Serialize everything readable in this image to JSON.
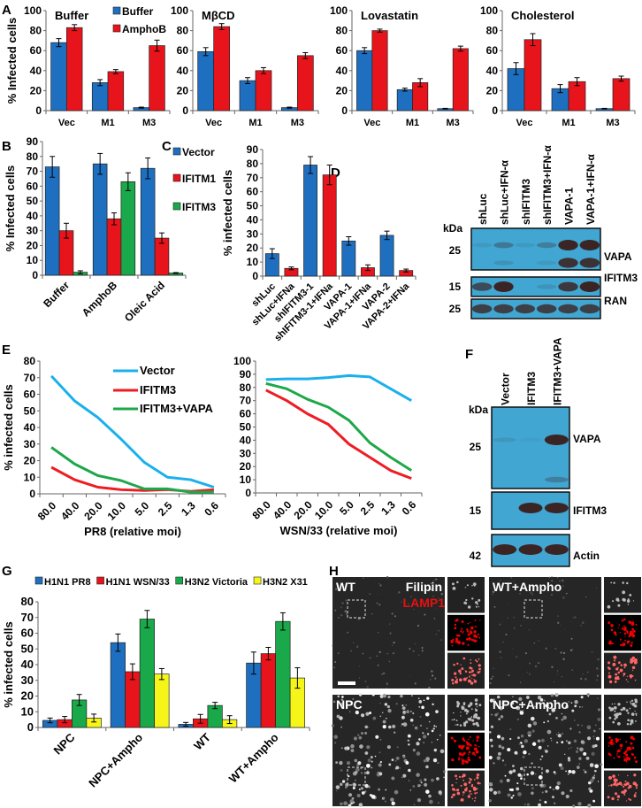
{
  "panel_labels": {
    "A": "A",
    "B": "B",
    "C": "C",
    "D": "D",
    "E": "E",
    "F": "F",
    "G": "G",
    "H": "H"
  },
  "chart_data": [
    {
      "id": "A1",
      "panel": "A",
      "type": "bar",
      "title": "Buffer",
      "xlabel": "",
      "ylabel": "% Infected cells",
      "ylim": [
        0,
        100
      ],
      "ystep": 20,
      "legend": "top-right",
      "categories": [
        "Vec",
        "M1",
        "M3"
      ],
      "series": [
        {
          "name": "Buffer",
          "color": "#1f6fc0",
          "values": [
            68,
            28,
            3
          ],
          "errors": [
            4,
            3,
            0.5
          ]
        },
        {
          "name": "AmphoB",
          "color": "#e8141c",
          "values": [
            83,
            39,
            65
          ],
          "errors": [
            3,
            2,
            5.5
          ]
        }
      ]
    },
    {
      "id": "A2",
      "panel": "A",
      "type": "bar",
      "title": "MβCD",
      "xlabel": "",
      "ylabel": "",
      "ylim": [
        0,
        100
      ],
      "ystep": 20,
      "categories": [
        "Vec",
        "M1",
        "M3"
      ],
      "series": [
        {
          "name": "Buffer",
          "color": "#1f6fc0",
          "values": [
            59,
            30,
            3
          ],
          "errors": [
            4,
            3,
            0.5
          ]
        },
        {
          "name": "AmphoB",
          "color": "#e8141c",
          "values": [
            84,
            40,
            55
          ],
          "errors": [
            3,
            3,
            3
          ]
        }
      ]
    },
    {
      "id": "A3",
      "panel": "A",
      "type": "bar",
      "title": "Lovastatin",
      "xlabel": "",
      "ylabel": "",
      "ylim": [
        0,
        100
      ],
      "ystep": 20,
      "categories": [
        "Vec",
        "M1",
        "M3"
      ],
      "series": [
        {
          "name": "Buffer",
          "color": "#1f6fc0",
          "values": [
            60,
            21,
            2
          ],
          "errors": [
            3,
            1.5,
            0.3
          ]
        },
        {
          "name": "AmphoB",
          "color": "#e8141c",
          "values": [
            80,
            28,
            62
          ],
          "errors": [
            1.5,
            4,
            2.5
          ]
        }
      ]
    },
    {
      "id": "A4",
      "panel": "A",
      "type": "bar",
      "title": "Cholesterol",
      "xlabel": "",
      "ylabel": "",
      "ylim": [
        0,
        100
      ],
      "ystep": 20,
      "categories": [
        "Vec",
        "M1",
        "M3"
      ],
      "series": [
        {
          "name": "Buffer",
          "color": "#1f6fc0",
          "values": [
            42,
            22,
            2
          ],
          "errors": [
            6,
            4,
            0.3
          ]
        },
        {
          "name": "AmphoB",
          "color": "#e8141c",
          "values": [
            71,
            29,
            32
          ],
          "errors": [
            6,
            4,
            2.5
          ]
        }
      ]
    },
    {
      "id": "B",
      "panel": "B",
      "type": "bar",
      "title": "",
      "xlabel": "",
      "ylabel": "% Infected cells",
      "ylim": [
        0,
        90
      ],
      "ystep": 10,
      "legend": "right",
      "categories": [
        "Buffer",
        "AmphoB",
        "Oleic Acid"
      ],
      "series": [
        {
          "name": "Vector",
          "color": "#1f6fc0",
          "values": [
            73,
            75,
            72
          ],
          "errors": [
            7,
            7,
            7
          ]
        },
        {
          "name": "IFITM1",
          "color": "#e8141c",
          "values": [
            30,
            38,
            25
          ],
          "errors": [
            5,
            4,
            3.5
          ]
        },
        {
          "name": "IFITM3",
          "color": "#19a84a",
          "values": [
            2,
            63,
            1.5
          ],
          "errors": [
            1,
            6,
            0.3
          ]
        }
      ]
    },
    {
      "id": "C",
      "panel": "C",
      "type": "bar",
      "title": "",
      "xlabel": "",
      "ylabel": "% infected cells",
      "ylim": [
        0,
        90
      ],
      "ystep": 10,
      "categories": [
        "shLuc",
        "shLuc+IFNa",
        "shIFITM3-1",
        "shIFITM3-1+IFNa",
        "VAPA-1",
        "VAPA-1+IFNa",
        "VAPA-2",
        "VAPA-2+IFNa"
      ],
      "values": [
        16,
        5.5,
        79,
        72,
        25,
        6,
        29,
        4
      ],
      "errors": [
        3.5,
        1,
        6,
        7,
        3,
        2,
        3,
        1
      ],
      "colors": [
        "#1f6fc0",
        "#e8141c",
        "#1f6fc0",
        "#e8141c",
        "#1f6fc0",
        "#e8141c",
        "#1f6fc0",
        "#e8141c"
      ]
    },
    {
      "id": "E1",
      "panel": "E",
      "type": "line",
      "title": "",
      "xlabel": "PR8 (relative moi)",
      "ylabel": "% infected cells",
      "ylim": [
        0,
        80
      ],
      "ystep": 10,
      "legend": "top-right",
      "x": [
        "80.0",
        "40.0",
        "20.0",
        "10.0",
        "5.0",
        "2.5",
        "1.3",
        "0.6"
      ],
      "series": [
        {
          "name": "Vector",
          "color": "#1ab0ec",
          "values": [
            71,
            56,
            46,
            33,
            19,
            10,
            8.5,
            4
          ]
        },
        {
          "name": "IFITM3",
          "color": "#ee1c24",
          "values": [
            16,
            8.5,
            4,
            2.5,
            2,
            2.5,
            1.5,
            2.5
          ]
        },
        {
          "name": "IFITM3+VAPA",
          "color": "#1ea84a",
          "values": [
            28,
            18,
            11,
            8,
            3,
            3,
            1,
            1
          ]
        }
      ]
    },
    {
      "id": "E2",
      "panel": "E",
      "type": "line",
      "title": "",
      "xlabel": "WSN/33 (relative moi)",
      "ylabel": "",
      "ylim": [
        0,
        100
      ],
      "ystep": 10,
      "x": [
        "80.0",
        "40.0",
        "20.0",
        "10.0",
        "5.0",
        "2.5",
        "1.3",
        "0.6"
      ],
      "series": [
        {
          "name": "Vector",
          "color": "#1ab0ec",
          "values": [
            86,
            86.5,
            86.5,
            87.5,
            89,
            88,
            79,
            70
          ]
        },
        {
          "name": "IFITM3",
          "color": "#ee1c24",
          "values": [
            78,
            70,
            60,
            52,
            37,
            27,
            17,
            11
          ]
        },
        {
          "name": "IFITM3+VAPA",
          "color": "#1ea84a",
          "values": [
            83,
            79,
            71,
            65,
            55,
            38,
            27,
            17
          ]
        }
      ]
    },
    {
      "id": "G",
      "panel": "G",
      "type": "bar",
      "title": "",
      "xlabel": "",
      "ylabel": "% infected cells",
      "ylim": [
        0,
        80
      ],
      "ystep": 10,
      "legend": "top",
      "categories": [
        "NPC",
        "NPC+Ampho",
        "WT",
        "WT+Ampho"
      ],
      "series": [
        {
          "name": "H1N1 PR8",
          "color": "#1f6fc0",
          "values": [
            4.5,
            54,
            2,
            41
          ],
          "errors": [
            1.5,
            5.5,
            1.2,
            7
          ]
        },
        {
          "name": "H1N1 WSN/33",
          "color": "#e8141c",
          "values": [
            5,
            35.5,
            5.5,
            47
          ],
          "errors": [
            2,
            5,
            2.8,
            4
          ]
        },
        {
          "name": "H3N2 Victoria",
          "color": "#19a84a",
          "values": [
            17.5,
            69,
            14,
            67.5
          ],
          "errors": [
            3.5,
            5.5,
            2,
            5.5
          ]
        },
        {
          "name": "H3N2 X31",
          "color": "#f5f51a",
          "values": [
            6,
            34,
            5,
            31.5
          ],
          "errors": [
            2.5,
            3.5,
            2.5,
            6.5
          ]
        }
      ]
    }
  ],
  "blots": {
    "D": {
      "kda_label": "kDa",
      "lanes": [
        "shLuc",
        "shLuc+IFN-α",
        "shIFITM3",
        "shIFITM3+IFN-α",
        "VAPA-1",
        "VAPA-1+IFN-α"
      ],
      "panels": [
        {
          "protein": "VAPA",
          "marker": "25",
          "bands": [
            [
              0.1,
              0.35,
              0.1,
              0.3,
              1,
              1
            ],
            [
              0,
              0.15,
              0,
              0.1,
              0.9,
              0.9
            ]
          ]
        },
        {
          "protein": "IFITM3",
          "marker": "15",
          "bands": [
            [
              0.7,
              1,
              0,
              0.15,
              0.85,
              1
            ]
          ]
        },
        {
          "protein": "RAN",
          "marker": "25",
          "bands": [
            [
              0.8,
              0.8,
              0.8,
              0.8,
              0.8,
              0.8
            ]
          ]
        }
      ]
    },
    "F": {
      "kda_label": "kDa",
      "lanes": [
        "Vector",
        "IFITM3",
        "IFITM3+VAPA"
      ],
      "panels": [
        {
          "protein": "VAPA",
          "marker": "25",
          "bands": [
            [
              0.12,
              0.05,
              1
            ],
            [
              0,
              0,
              0.3
            ]
          ]
        },
        {
          "protein": "IFITM3",
          "marker": "15",
          "bands": [
            [
              0,
              1,
              1
            ]
          ]
        },
        {
          "protein": "Actin",
          "marker": "42",
          "bands": [
            [
              1,
              1,
              1
            ]
          ]
        }
      ]
    },
    "band_color": "#3b1e1a",
    "membrane_color": "#41a6d2"
  },
  "microscopy": {
    "stain_white": "Filipin",
    "stain_red": "LAMP1",
    "conditions": [
      "WT",
      "WT+Ampho",
      "NPC",
      "NPC+Ampho"
    ]
  }
}
